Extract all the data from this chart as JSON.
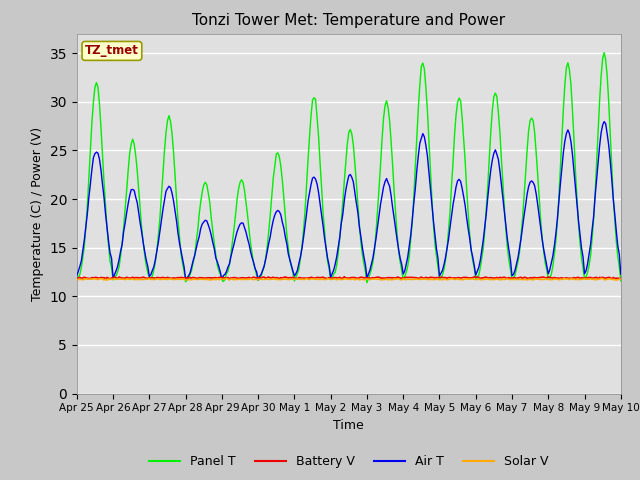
{
  "title": "Tonzi Tower Met: Temperature and Power",
  "ylabel": "Temperature (C) / Power (V)",
  "xlabel": "Time",
  "ylim": [
    0,
    37
  ],
  "yticks": [
    0,
    5,
    10,
    15,
    20,
    25,
    30,
    35
  ],
  "legend_label": "TZ_tmet",
  "fig_facecolor": "#c8c8c8",
  "plot_bg_color": "#e0e0e0",
  "line_colors": {
    "panel_t": "#00ee00",
    "battery_v": "#ee0000",
    "air_t": "#0000ee",
    "solar_v": "#ffaa00"
  },
  "legend_entries": [
    "Panel T",
    "Battery V",
    "Air T",
    "Solar V"
  ],
  "n_days": 15,
  "x_tick_labels": [
    "Apr 25",
    "Apr 26",
    "Apr 27",
    "Apr 28",
    "Apr 29",
    "Apr 30",
    "May 1",
    "May 2",
    "May 3",
    "May 4",
    "May 5",
    "May 6",
    "May 7",
    "May 8",
    "May 9",
    "May 10"
  ],
  "panel_peaks": [
    32,
    26,
    28.5,
    21.8,
    22,
    24.8,
    30.5,
    27.2,
    30,
    34,
    30.5,
    31,
    28.5,
    34,
    35
  ],
  "air_peaks": [
    25,
    21,
    21.3,
    17.8,
    17.5,
    18.8,
    22.3,
    22.5,
    22,
    26.7,
    22,
    25,
    22,
    27,
    28
  ],
  "base_night": 11.5,
  "battery_level": 11.9,
  "solar_level": 11.75
}
